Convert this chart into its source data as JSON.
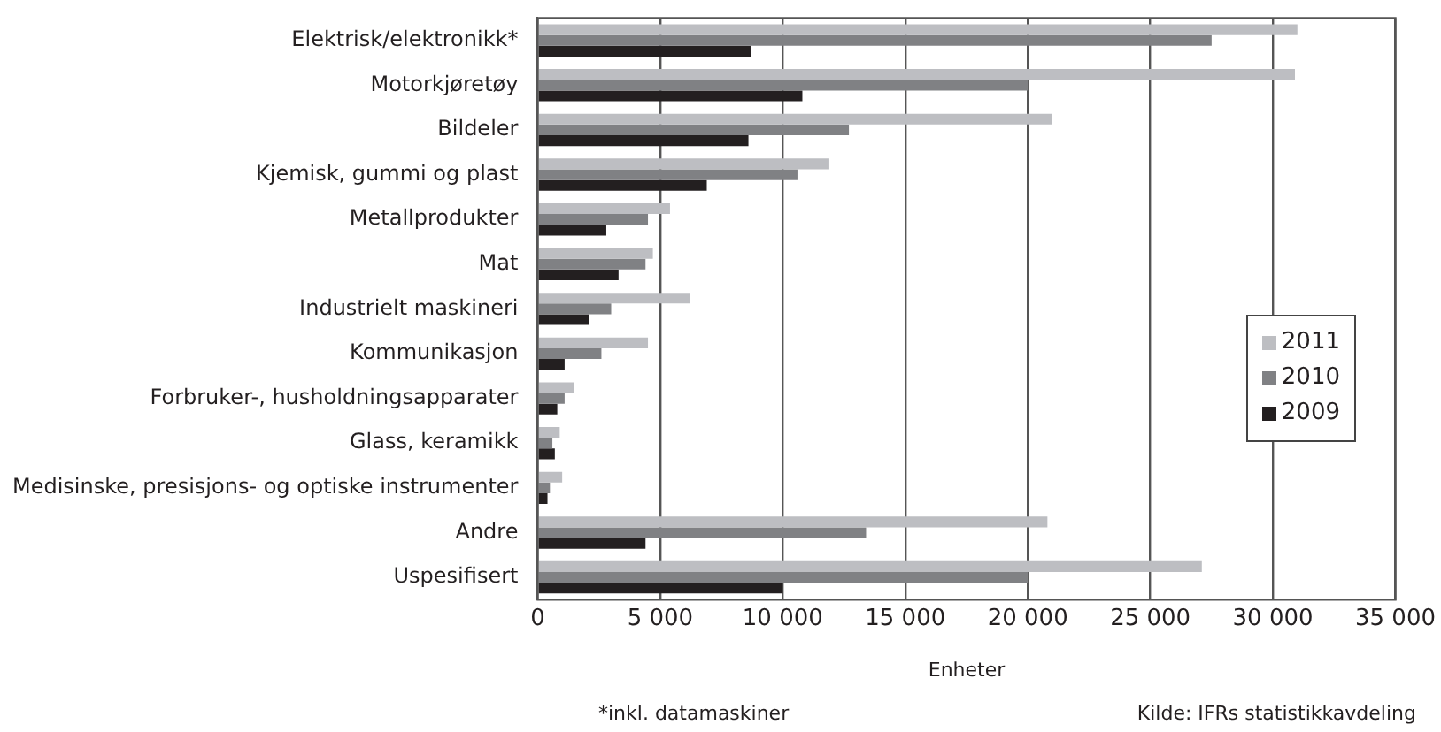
{
  "chart_data": {
    "type": "bar",
    "orientation": "horizontal",
    "categories": [
      "Elektrisk/elektronikk*",
      "Motorkjøretøy",
      "Bildeler",
      "Kjemisk, gummi og plast",
      "Metallprodukter",
      "Mat",
      "Industrielt maskineri",
      "Kommunikasjon",
      "Forbruker-, husholdningsapparater",
      "Glass, keramikk",
      "Medisinske, presisjons- og optiske instrumenter",
      "Andre",
      "Uspesifisert"
    ],
    "series": [
      {
        "name": "2011",
        "color": "#bdbec2",
        "values": [
          31000,
          30900,
          21000,
          11900,
          5400,
          4700,
          6200,
          4500,
          1500,
          900,
          1000,
          20800,
          27100
        ]
      },
      {
        "name": "2010",
        "color": "#808184",
        "values": [
          27500,
          20000,
          12700,
          10600,
          4500,
          4400,
          3000,
          2600,
          1100,
          600,
          500,
          13400,
          20000
        ]
      },
      {
        "name": "2009",
        "color": "#231f20",
        "values": [
          8700,
          10800,
          8600,
          6900,
          2800,
          3300,
          2100,
          1100,
          800,
          700,
          400,
          4400,
          10000
        ]
      }
    ],
    "xlim": [
      0,
      35000
    ],
    "xticks": [
      0,
      {
        "value": 5000,
        "label": "5 000"
      },
      {
        "value": 10000,
        "label": "10 000"
      },
      {
        "value": 15000,
        "label": "15 000"
      },
      {
        "value": 20000,
        "label": "20 000"
      },
      {
        "value": 25000,
        "label": "25 000"
      },
      {
        "value": 30000,
        "label": "30 000"
      },
      {
        "value": 35000,
        "label": "35 000"
      }
    ],
    "xlabel": "Enheter",
    "grid": "x",
    "legend": "right",
    "annotations": [
      "*inkl. datamaskiner",
      "Kilde: IFRs statistikkavdeling"
    ]
  }
}
